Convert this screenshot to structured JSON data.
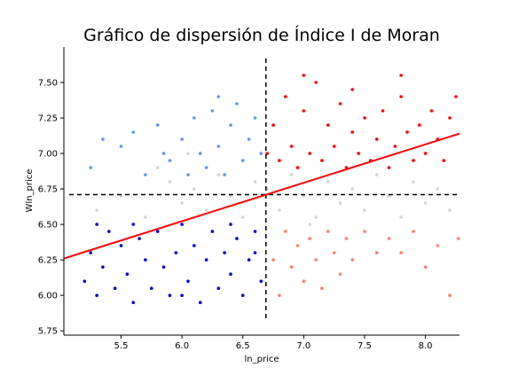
{
  "chart_data": {
    "type": "scatter",
    "title": "Gráfico de dispersión de Índice I de Moran",
    "xlabel": "ln_price",
    "ylabel": "Wln_price",
    "xlim": [
      5.03,
      8.28
    ],
    "ylim": [
      5.72,
      7.75
    ],
    "xticks": [
      5.5,
      6.0,
      6.5,
      7.0,
      7.5,
      8.0
    ],
    "xtick_labels": [
      "5.5",
      "6.0",
      "6.5",
      "7.0",
      "7.5",
      "8.0"
    ],
    "yticks": [
      5.75,
      6.0,
      6.25,
      6.5,
      6.75,
      7.0,
      7.25,
      7.5
    ],
    "ytick_labels": [
      "5.75",
      "6.00",
      "6.25",
      "6.50",
      "6.75",
      "7.00",
      "7.25",
      "7.50"
    ],
    "grid": false,
    "mean_lines": {
      "x": 6.69,
      "y": 6.71
    },
    "regression": {
      "x": [
        5.03,
        8.28
      ],
      "y": [
        6.26,
        7.14
      ]
    },
    "series": [
      {
        "color": "#0000e6",
        "points": [
          [
            5.2,
            6.1
          ],
          [
            5.25,
            6.3
          ],
          [
            5.3,
            6.0
          ],
          [
            5.35,
            6.2
          ],
          [
            5.4,
            6.45
          ],
          [
            5.45,
            6.05
          ],
          [
            5.5,
            6.35
          ],
          [
            5.55,
            6.15
          ],
          [
            5.6,
            5.95
          ],
          [
            5.65,
            6.4
          ],
          [
            5.7,
            6.25
          ],
          [
            5.75,
            6.05
          ],
          [
            5.8,
            6.45
          ],
          [
            5.85,
            6.2
          ],
          [
            5.9,
            6.0
          ],
          [
            5.95,
            6.3
          ],
          [
            6.0,
            6.5
          ],
          [
            6.05,
            6.1
          ],
          [
            6.1,
            6.35
          ],
          [
            6.15,
            5.95
          ],
          [
            6.2,
            6.25
          ],
          [
            6.25,
            6.45
          ],
          [
            6.3,
            6.05
          ],
          [
            6.35,
            6.3
          ],
          [
            6.4,
            6.15
          ],
          [
            6.45,
            6.4
          ],
          [
            6.5,
            6.0
          ],
          [
            6.55,
            6.25
          ],
          [
            6.6,
            6.45
          ],
          [
            6.65,
            6.1
          ],
          [
            5.3,
            6.5
          ],
          [
            5.6,
            6.5
          ],
          [
            6.0,
            6.0
          ],
          [
            6.4,
            6.5
          ],
          [
            6.6,
            6.3
          ]
        ]
      },
      {
        "color": "#ff0000",
        "points": [
          [
            6.75,
            7.2
          ],
          [
            6.8,
            6.95
          ],
          [
            6.85,
            7.4
          ],
          [
            6.9,
            7.05
          ],
          [
            6.95,
            6.9
          ],
          [
            7.0,
            7.3
          ],
          [
            7.05,
            7.0
          ],
          [
            7.1,
            7.5
          ],
          [
            7.15,
            6.95
          ],
          [
            7.2,
            7.2
          ],
          [
            7.25,
            7.05
          ],
          [
            7.3,
            7.35
          ],
          [
            7.35,
            6.9
          ],
          [
            7.4,
            7.15
          ],
          [
            7.45,
            7.0
          ],
          [
            7.5,
            7.25
          ],
          [
            7.55,
            6.95
          ],
          [
            7.6,
            7.1
          ],
          [
            7.65,
            7.3
          ],
          [
            7.7,
            6.9
          ],
          [
            7.75,
            7.05
          ],
          [
            7.8,
            7.4
          ],
          [
            7.85,
            7.15
          ],
          [
            7.9,
            6.95
          ],
          [
            7.95,
            7.2
          ],
          [
            8.0,
            7.0
          ],
          [
            8.05,
            7.3
          ],
          [
            8.1,
            7.1
          ],
          [
            8.15,
            6.95
          ],
          [
            8.2,
            7.25
          ],
          [
            7.0,
            7.55
          ],
          [
            7.4,
            7.45
          ],
          [
            7.8,
            7.55
          ],
          [
            6.7,
            7.0
          ],
          [
            8.25,
            7.4
          ]
        ]
      },
      {
        "color": "#6495ed",
        "points": [
          [
            5.25,
            6.9
          ],
          [
            5.35,
            7.1
          ],
          [
            5.5,
            7.05
          ],
          [
            5.6,
            7.15
          ],
          [
            5.7,
            6.85
          ],
          [
            5.8,
            7.2
          ],
          [
            5.9,
            6.95
          ],
          [
            6.0,
            7.1
          ],
          [
            6.05,
            6.85
          ],
          [
            6.1,
            7.25
          ],
          [
            6.15,
            7.0
          ],
          [
            6.2,
            6.9
          ],
          [
            6.25,
            7.3
          ],
          [
            6.3,
            7.05
          ],
          [
            6.35,
            6.85
          ],
          [
            6.4,
            7.2
          ],
          [
            6.45,
            7.35
          ],
          [
            6.5,
            6.95
          ],
          [
            6.55,
            7.1
          ],
          [
            6.6,
            7.25
          ],
          [
            6.65,
            7.0
          ],
          [
            6.3,
            7.4
          ],
          [
            5.85,
            7.0
          ]
        ]
      },
      {
        "color": "#fa8072",
        "points": [
          [
            6.75,
            6.25
          ],
          [
            6.8,
            6.0
          ],
          [
            6.85,
            6.45
          ],
          [
            6.9,
            6.2
          ],
          [
            6.95,
            6.35
          ],
          [
            7.0,
            6.1
          ],
          [
            7.05,
            6.4
          ],
          [
            7.1,
            6.25
          ],
          [
            7.15,
            6.05
          ],
          [
            7.2,
            6.45
          ],
          [
            7.25,
            6.3
          ],
          [
            7.3,
            6.15
          ],
          [
            7.35,
            6.4
          ],
          [
            7.4,
            6.25
          ],
          [
            7.5,
            6.45
          ],
          [
            7.6,
            6.3
          ],
          [
            7.7,
            6.4
          ],
          [
            7.8,
            6.3
          ],
          [
            7.9,
            6.45
          ],
          [
            8.0,
            6.2
          ],
          [
            8.1,
            6.35
          ],
          [
            8.2,
            6.0
          ],
          [
            8.27,
            6.4
          ]
        ]
      },
      {
        "color": "#d3d3d3",
        "points": [
          [
            5.3,
            6.6
          ],
          [
            5.5,
            6.7
          ],
          [
            5.7,
            6.55
          ],
          [
            5.9,
            6.8
          ],
          [
            6.0,
            6.65
          ],
          [
            6.1,
            6.75
          ],
          [
            6.2,
            6.6
          ],
          [
            6.3,
            6.85
          ],
          [
            6.4,
            6.7
          ],
          [
            6.5,
            6.55
          ],
          [
            6.6,
            6.8
          ],
          [
            6.7,
            6.75
          ],
          [
            6.8,
            6.6
          ],
          [
            6.9,
            6.85
          ],
          [
            7.0,
            6.7
          ],
          [
            7.1,
            6.55
          ],
          [
            7.2,
            6.8
          ],
          [
            7.3,
            6.65
          ],
          [
            7.4,
            6.75
          ],
          [
            7.5,
            6.6
          ],
          [
            7.6,
            6.85
          ],
          [
            7.7,
            6.7
          ],
          [
            7.8,
            6.55
          ],
          [
            7.9,
            6.8
          ],
          [
            8.0,
            6.65
          ],
          [
            8.1,
            6.75
          ],
          [
            8.2,
            6.6
          ],
          [
            5.8,
            6.9
          ],
          [
            6.05,
            7.0
          ],
          [
            7.05,
            6.5
          ]
        ]
      }
    ]
  }
}
